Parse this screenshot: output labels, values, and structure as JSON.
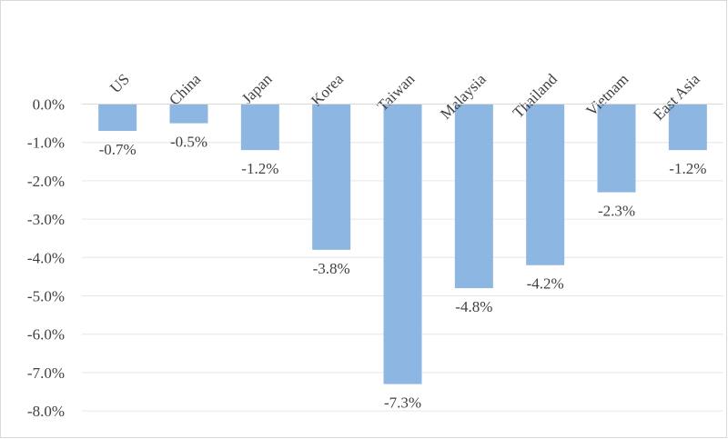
{
  "chart_data": {
    "type": "bar",
    "title": "",
    "xlabel": "",
    "ylabel": "",
    "categories": [
      "US",
      "China",
      "Japan",
      "Korea",
      "Taiwan",
      "Malaysia",
      "Thailand",
      "Vietnam",
      "East Asia"
    ],
    "values": [
      -0.7,
      -0.5,
      -1.2,
      -3.8,
      -7.3,
      -4.8,
      -4.2,
      -2.3,
      -1.2
    ],
    "data_labels": [
      "-0.7%",
      "-0.5%",
      "-1.2%",
      "-3.8%",
      "-7.3%",
      "-4.8%",
      "-4.2%",
      "-2.3%",
      "-1.2%"
    ],
    "ylim": [
      -8.0,
      0.0
    ],
    "y_ticks": [
      0,
      -1,
      -2,
      -3,
      -4,
      -5,
      -6,
      -7,
      -8
    ],
    "y_tick_labels": [
      "0.0%",
      "-1.0%",
      "-2.0%",
      "-3.0%",
      "-4.0%",
      "-5.0%",
      "-6.0%",
      "-7.0%",
      "-8.0%"
    ],
    "x_axis_position": "top",
    "category_label_rotation": "diagonal",
    "grid": true,
    "legend": "none",
    "bar_color": "#8db6e2",
    "grid_color": "#e6e6e6",
    "text_color": "#404040"
  }
}
